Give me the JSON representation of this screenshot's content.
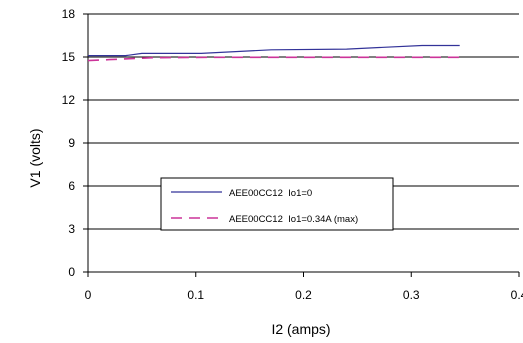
{
  "chart_data": {
    "type": "line",
    "title": "",
    "xlabel": "I2 (amps)",
    "ylabel": "V1 (volts)",
    "xlim": [
      0,
      0.4
    ],
    "ylim": [
      0,
      18
    ],
    "x_ticks": [
      0,
      0.1,
      0.2,
      0.3,
      0.4
    ],
    "x_tick_labels": [
      "0",
      "0.1",
      "0.2",
      "0.3",
      "0.4"
    ],
    "y_ticks": [
      0,
      3,
      6,
      9,
      12,
      15,
      18
    ],
    "y_tick_labels": [
      "0",
      "3",
      "6",
      "9",
      "12",
      "15",
      "18"
    ],
    "grid": {
      "horizontal": true,
      "vertical": false
    },
    "legend_placement": "center",
    "series": [
      {
        "name": "AEE00CC12  Io1=0",
        "color": "#333399",
        "dash": "solid",
        "x": [
          0,
          0.035,
          0.05,
          0.105,
          0.17,
          0.24,
          0.31,
          0.345
        ],
        "y": [
          15.1,
          15.1,
          15.25,
          15.25,
          15.5,
          15.55,
          15.8,
          15.8
        ]
      },
      {
        "name": "AEE00CC12  Io1=0.34A (max)",
        "color": "#cc3399",
        "dash": "dashed",
        "x": [
          0,
          0.02,
          0.06,
          0.1,
          0.15,
          0.2,
          0.25,
          0.3,
          0.345
        ],
        "y": [
          14.75,
          14.82,
          14.95,
          14.97,
          14.98,
          14.98,
          14.98,
          14.98,
          14.98
        ]
      }
    ]
  }
}
